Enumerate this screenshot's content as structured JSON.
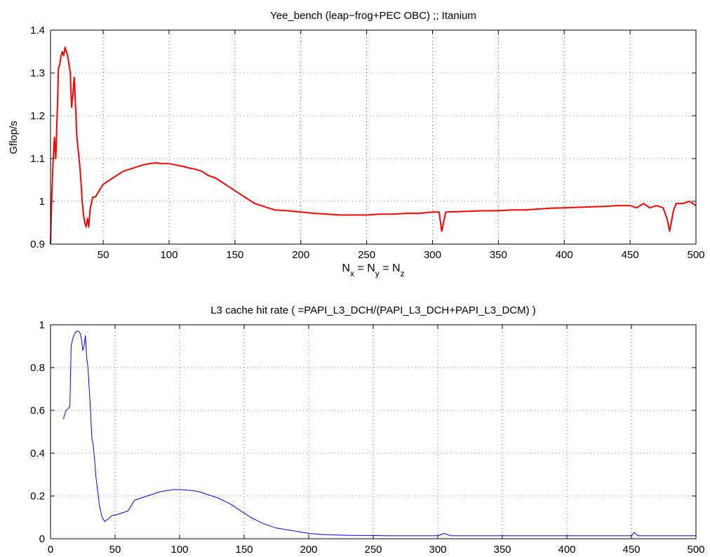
{
  "chart_data": [
    {
      "type": "line",
      "title": "Yee_bench (leap−frog+PEC OBC) ;; Itanium",
      "xlabel": "N_x = N_y = N_z",
      "ylabel": "Gflop/s",
      "xlim": [
        10,
        500
      ],
      "ylim": [
        0.9,
        1.4
      ],
      "xticks": [
        "50",
        "100",
        "150",
        "200",
        "250",
        "300",
        "350",
        "400",
        "450",
        "500"
      ],
      "yticks": [
        "0.9",
        "1",
        "1.1",
        "1.2",
        "1.3",
        "1.4"
      ],
      "grid": true,
      "color": "#ff0000",
      "series": [
        {
          "x": [
            10,
            11,
            12,
            13,
            14,
            15,
            16,
            17,
            18,
            19,
            20,
            21,
            22,
            23,
            24,
            25,
            26,
            27,
            28,
            29,
            30,
            31,
            32,
            33,
            34,
            35,
            36,
            37,
            38,
            39,
            40,
            42,
            44,
            46,
            48,
            50,
            55,
            60,
            65,
            70,
            75,
            80,
            85,
            90,
            95,
            100,
            105,
            110,
            115,
            120,
            125,
            130,
            135,
            140,
            145,
            150,
            155,
            160,
            165,
            170,
            175,
            180,
            190,
            200,
            210,
            220,
            230,
            240,
            250,
            260,
            270,
            280,
            290,
            300,
            305,
            307,
            310,
            320,
            330,
            340,
            350,
            360,
            370,
            380,
            390,
            400,
            410,
            420,
            430,
            440,
            450,
            455,
            460,
            465,
            470,
            475,
            478,
            480,
            483,
            485,
            490,
            495,
            500
          ],
          "values": [
            0.9,
            1.02,
            1.1,
            1.15,
            1.1,
            1.2,
            1.31,
            1.32,
            1.34,
            1.35,
            1.34,
            1.36,
            1.35,
            1.34,
            1.32,
            1.3,
            1.22,
            1.25,
            1.29,
            1.22,
            1.15,
            1.12,
            1.09,
            1.05,
            1.0,
            0.97,
            0.95,
            0.94,
            0.96,
            0.94,
            0.98,
            1.01,
            1.01,
            1.02,
            1.03,
            1.04,
            1.05,
            1.06,
            1.07,
            1.075,
            1.08,
            1.085,
            1.088,
            1.09,
            1.088,
            1.088,
            1.085,
            1.082,
            1.078,
            1.075,
            1.07,
            1.06,
            1.055,
            1.045,
            1.035,
            1.025,
            1.015,
            1.005,
            0.995,
            0.99,
            0.985,
            0.98,
            0.978,
            0.975,
            0.972,
            0.97,
            0.968,
            0.968,
            0.968,
            0.97,
            0.97,
            0.972,
            0.972,
            0.975,
            0.975,
            0.93,
            0.975,
            0.976,
            0.977,
            0.978,
            0.978,
            0.98,
            0.98,
            0.982,
            0.984,
            0.985,
            0.986,
            0.987,
            0.988,
            0.99,
            0.99,
            0.985,
            0.995,
            0.985,
            0.99,
            0.985,
            0.96,
            0.93,
            0.98,
            0.995,
            0.995,
            1.0,
            0.99
          ]
        }
      ]
    },
    {
      "type": "line",
      "title": "L3 cache hit rate ( =PAPI_L3_DCH/(PAPI_L3_DCH+PAPI_L3_DCM) )",
      "xlabel": "",
      "ylabel": "",
      "xlim": [
        0,
        500
      ],
      "ylim": [
        0,
        1
      ],
      "xticks": [
        "0",
        "50",
        "100",
        "150",
        "200",
        "250",
        "300",
        "350",
        "400",
        "450",
        "500"
      ],
      "yticks": [
        "0",
        "0.2",
        "0.4",
        "0.6",
        "0.8",
        "1"
      ],
      "grid": true,
      "color": "#0000ff",
      "series": [
        {
          "x": [
            10,
            11,
            12,
            14,
            15,
            16,
            17,
            18,
            19,
            20,
            21,
            22,
            23,
            24,
            25,
            26,
            27,
            28,
            29,
            30,
            31,
            32,
            33,
            34,
            35,
            36,
            37,
            38,
            40,
            42,
            44,
            46,
            48,
            50,
            55,
            60,
            65,
            70,
            75,
            80,
            85,
            90,
            95,
            100,
            105,
            110,
            115,
            120,
            125,
            130,
            135,
            140,
            145,
            150,
            155,
            160,
            165,
            170,
            175,
            180,
            185,
            190,
            195,
            200,
            210,
            220,
            230,
            240,
            250,
            260,
            270,
            280,
            290,
            300,
            305,
            310,
            320,
            340,
            360,
            380,
            400,
            420,
            440,
            450,
            452,
            455,
            460,
            480,
            500
          ],
          "values": [
            0.56,
            0.58,
            0.6,
            0.61,
            0.62,
            0.9,
            0.93,
            0.95,
            0.96,
            0.97,
            0.97,
            0.97,
            0.96,
            0.93,
            0.88,
            0.9,
            0.95,
            0.85,
            0.8,
            0.7,
            0.6,
            0.47,
            0.44,
            0.38,
            0.3,
            0.25,
            0.2,
            0.15,
            0.1,
            0.08,
            0.09,
            0.1,
            0.11,
            0.11,
            0.12,
            0.13,
            0.18,
            0.19,
            0.2,
            0.21,
            0.22,
            0.225,
            0.23,
            0.23,
            0.228,
            0.225,
            0.22,
            0.21,
            0.2,
            0.19,
            0.175,
            0.16,
            0.14,
            0.12,
            0.1,
            0.085,
            0.07,
            0.06,
            0.05,
            0.045,
            0.04,
            0.035,
            0.03,
            0.025,
            0.02,
            0.018,
            0.016,
            0.015,
            0.015,
            0.014,
            0.014,
            0.014,
            0.014,
            0.014,
            0.025,
            0.014,
            0.014,
            0.014,
            0.014,
            0.014,
            0.014,
            0.014,
            0.014,
            0.014,
            0.03,
            0.014,
            0.014,
            0.014,
            0.014
          ]
        }
      ]
    }
  ]
}
